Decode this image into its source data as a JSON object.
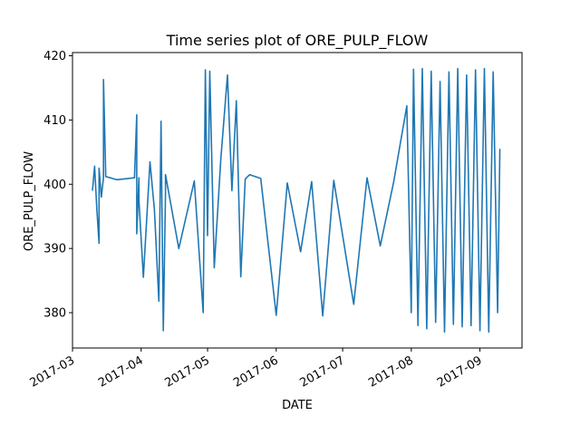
{
  "chart_data": {
    "type": "line",
    "title": "Time series plot of ORE_PULP_FLOW",
    "xlabel": "DATE",
    "ylabel": "ORE_PULP_FLOW",
    "xlim": [
      "2017-03-01",
      "2017-09-20"
    ],
    "ylim": [
      374.5,
      420.5
    ],
    "x_ticks": [
      "2017-03",
      "2017-04",
      "2017-05",
      "2017-06",
      "2017-07",
      "2017-08",
      "2017-09"
    ],
    "y_ticks": [
      380,
      390,
      400,
      410,
      420
    ],
    "grid": false,
    "legend": "none",
    "series": [
      {
        "color": "#1f77b4",
        "x": [
          "2017-03-10",
          "2017-03-11",
          "2017-03-12",
          "2017-03-13",
          "2017-03-13",
          "2017-03-14",
          "2017-03-15",
          "2017-03-15",
          "2017-03-16",
          "2017-03-17",
          "2017-03-18",
          "2017-03-19",
          "2017-03-20",
          "2017-03-21",
          "2017-03-29",
          "2017-03-30",
          "2017-03-30",
          "2017-03-31",
          "2017-03-31",
          "2017-04-02",
          "2017-04-05",
          "2017-04-07",
          "2017-04-09",
          "2017-04-10",
          "2017-04-11",
          "2017-04-12",
          "2017-04-12",
          "2017-04-18",
          "2017-04-25",
          "2017-04-29",
          "2017-04-30",
          "2017-05-01",
          "2017-05-02",
          "2017-05-04",
          "2017-05-07",
          "2017-05-10",
          "2017-05-12",
          "2017-05-14",
          "2017-05-16",
          "2017-05-18",
          "2017-05-20",
          "2017-05-25",
          "2017-06-01",
          "2017-06-06",
          "2017-06-12",
          "2017-06-17",
          "2017-06-22",
          "2017-06-27",
          "2017-07-06",
          "2017-07-12",
          "2017-07-18",
          "2017-07-24",
          "2017-07-30",
          "2017-08-01",
          "2017-08-02",
          "2017-08-04",
          "2017-08-06",
          "2017-08-08",
          "2017-08-10",
          "2017-08-12",
          "2017-08-14",
          "2017-08-16",
          "2017-08-18",
          "2017-08-20",
          "2017-08-22",
          "2017-08-24",
          "2017-08-26",
          "2017-08-28",
          "2017-08-30",
          "2017-09-01",
          "2017-09-03",
          "2017-09-05",
          "2017-09-07",
          "2017-09-09",
          "2017-09-10"
        ],
        "y": [
          399.0,
          402.8,
          396.0,
          390.8,
          402.5,
          398.0,
          401.0,
          416.3,
          401.2,
          401.1,
          401.0,
          400.9,
          400.8,
          400.7,
          401.0,
          410.8,
          392.3,
          401.0,
          397.5,
          385.5,
          403.5,
          396.0,
          381.8,
          409.8,
          377.2,
          398.5,
          401.5,
          390.0,
          400.5,
          380.0,
          417.8,
          392.0,
          417.6,
          387.0,
          404.0,
          417.0,
          399.0,
          413.0,
          385.6,
          400.8,
          401.5,
          400.9,
          379.6,
          400.2,
          389.5,
          400.4,
          379.5,
          400.6,
          381.3,
          401.0,
          390.4,
          400.3,
          412.2,
          380.0,
          417.9,
          378.0,
          418.0,
          377.5,
          417.6,
          378.5,
          416.0,
          377.0,
          417.5,
          378.2,
          418.0,
          377.8,
          417.0,
          378.0,
          417.8,
          377.2,
          418.0,
          377.0,
          417.5,
          380.0,
          405.5
        ]
      }
    ]
  }
}
